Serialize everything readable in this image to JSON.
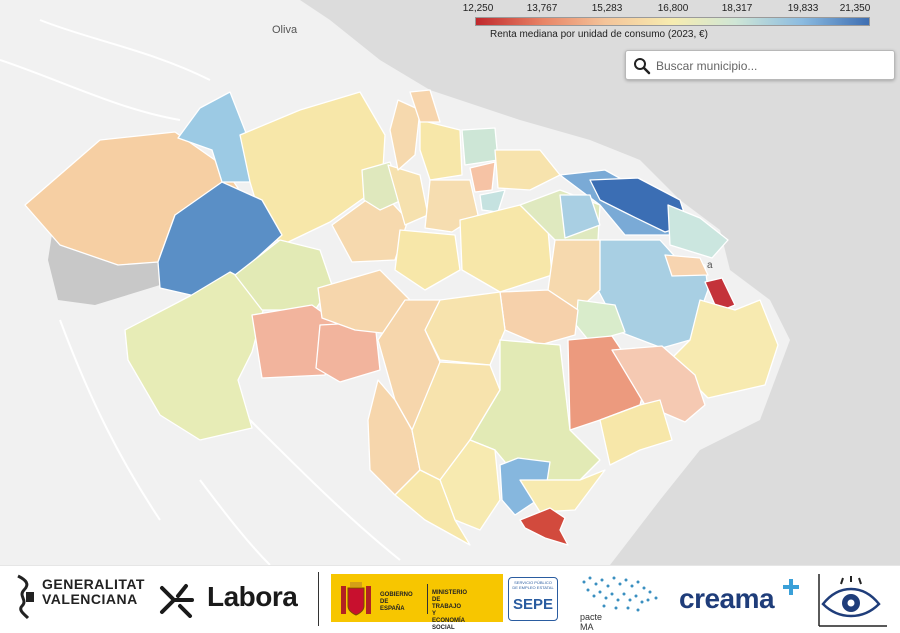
{
  "legend": {
    "ticks": [
      "12,250",
      "13,767",
      "15,283",
      "16,800",
      "18,317",
      "19,833",
      "21,350"
    ],
    "title": "Renta mediana por unidad de consumo (2023, €)",
    "colors": [
      "#c0282d",
      "#e88466",
      "#f4c49a",
      "#f7ecb0",
      "#cfe6d6",
      "#8bbbe0",
      "#3e6eb2"
    ]
  },
  "search": {
    "placeholder": "Buscar municipio..."
  },
  "map": {
    "place_labels": [
      "Oliva",
      "a"
    ]
  },
  "logos": {
    "generalitat": {
      "line1": "GENERALITAT",
      "line2": "VALENCIANA"
    },
    "labora": "Labora",
    "gobierno_left": [
      "GOBIERNO",
      "DE ESPAÑA"
    ],
    "gobierno_right": [
      "MINISTERIO",
      "DE TRABAJO",
      "Y ECONOMÍA SOCIAL"
    ],
    "sepe_small": "SERVICIO PÚBLICO DE EMPLEO ESTATAL",
    "sepe": "SEPE",
    "pacte": "pacte MA",
    "creama": "creama"
  }
}
